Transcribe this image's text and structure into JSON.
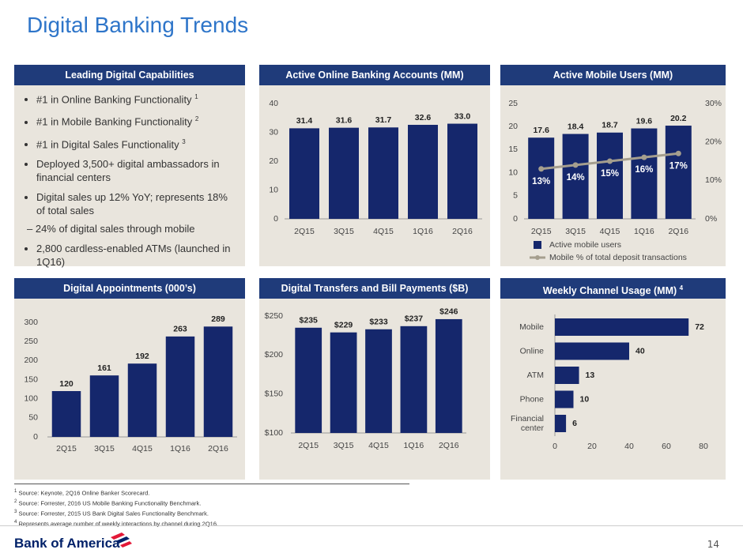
{
  "title": "Digital Banking Trends",
  "capabilities": {
    "heading": "Leading Digital Capabilities",
    "items": [
      {
        "text": "#1 in Online Banking Functionality",
        "note": "1"
      },
      {
        "text": "#1 in Mobile Banking Functionality",
        "note": "2"
      },
      {
        "text": "#1 in Digital Sales Functionality",
        "note": "3"
      },
      {
        "text": "Deployed 3,500+ digital ambassadors in financial centers"
      },
      {
        "text": "Digital sales up 12% YoY; represents 18% of total sales",
        "subitems": [
          "24% of digital sales through mobile"
        ]
      },
      {
        "text": "2,800 cardless-enabled ATMs (launched in 1Q16)"
      }
    ]
  },
  "chart_data": [
    {
      "type": "bar",
      "title": "Active Online Banking Accounts (MM)",
      "categories": [
        "2Q15",
        "3Q15",
        "4Q15",
        "1Q16",
        "2Q16"
      ],
      "values": [
        31.4,
        31.6,
        31.7,
        32.6,
        33.0
      ],
      "value_labels": [
        "31.4",
        "31.6",
        "31.7",
        "32.6",
        "33.0"
      ],
      "color": "#15276c",
      "ylim": [
        0,
        40
      ],
      "yticks": [
        0,
        10,
        20,
        30,
        40
      ]
    },
    {
      "type": "combo",
      "title": "Active Mobile Users (MM)",
      "categories": [
        "2Q15",
        "3Q15",
        "4Q15",
        "1Q16",
        "2Q16"
      ],
      "series": [
        {
          "name": "Active mobile users",
          "color": "#15276c",
          "values": [
            17.6,
            18.4,
            18.7,
            19.6,
            20.2
          ]
        },
        {
          "name": "Mobile % of total deposit transactions",
          "color": "#a59e8e",
          "axis": "y2",
          "values": [
            13,
            14,
            15,
            16,
            17
          ],
          "value_labels": [
            "13%",
            "14%",
            "15%",
            "16%",
            "17%"
          ]
        }
      ],
      "ylim": [
        0,
        25
      ],
      "yticks": [
        0,
        5,
        10,
        15,
        20,
        25
      ],
      "y2lim": [
        0,
        30
      ],
      "y2ticks": [
        {
          "value": 0,
          "label": "0%"
        },
        {
          "value": 10,
          "label": "10%"
        },
        {
          "value": 20,
          "label": "20%"
        },
        {
          "value": 30,
          "label": "30%"
        }
      ],
      "legend": "bottom"
    },
    {
      "type": "bar",
      "title": "Digital Appointments (000’s)",
      "categories": [
        "2Q15",
        "3Q15",
        "4Q15",
        "1Q16",
        "2Q16"
      ],
      "values": [
        120,
        161,
        192,
        263,
        289
      ],
      "color": "#15276c",
      "ylim": [
        0,
        300
      ],
      "yticks": [
        0,
        50,
        100,
        150,
        200,
        250,
        300
      ]
    },
    {
      "type": "bar",
      "title": "Digital Transfers and Bill Payments ($B)",
      "categories": [
        "2Q15",
        "3Q15",
        "4Q15",
        "1Q16",
        "2Q16"
      ],
      "values": [
        235,
        229,
        233,
        237,
        246
      ],
      "value_labels": [
        "$235",
        "$229",
        "$233",
        "$237",
        "$246"
      ],
      "color": "#15276c",
      "ylim": [
        100,
        250
      ],
      "yticks": [
        {
          "value": 100,
          "label": "$100"
        },
        {
          "value": 150,
          "label": "$150"
        },
        {
          "value": 200,
          "label": "$200"
        },
        {
          "value": 250,
          "label": "$250"
        }
      ]
    },
    {
      "type": "hbar",
      "title": "Weekly Channel Usage (MM)",
      "title_note": "4",
      "categories": [
        "Mobile",
        "Online",
        "ATM",
        "Phone",
        "Financial center"
      ],
      "values": [
        72,
        40,
        13,
        10,
        6
      ],
      "color": "#15276c",
      "xlim": [
        0,
        80
      ],
      "xticks": [
        0,
        20,
        40,
        60,
        80
      ]
    }
  ],
  "footnotes": [
    {
      "number": "1",
      "text": "Source: Keynote, 2Q16 Online Banker Scorecard."
    },
    {
      "number": "2",
      "text": "Source: Forrester, 2016 US Mobile Banking Functionality Benchmark."
    },
    {
      "number": "3",
      "text": "Source: Forrester, 2015 US Bank Digital Sales Functionality Benchmark."
    },
    {
      "number": "4",
      "text": "Represents average number of weekly interactions by channel during 2Q16."
    }
  ],
  "logo": "Bank of America",
  "page_number": "14"
}
